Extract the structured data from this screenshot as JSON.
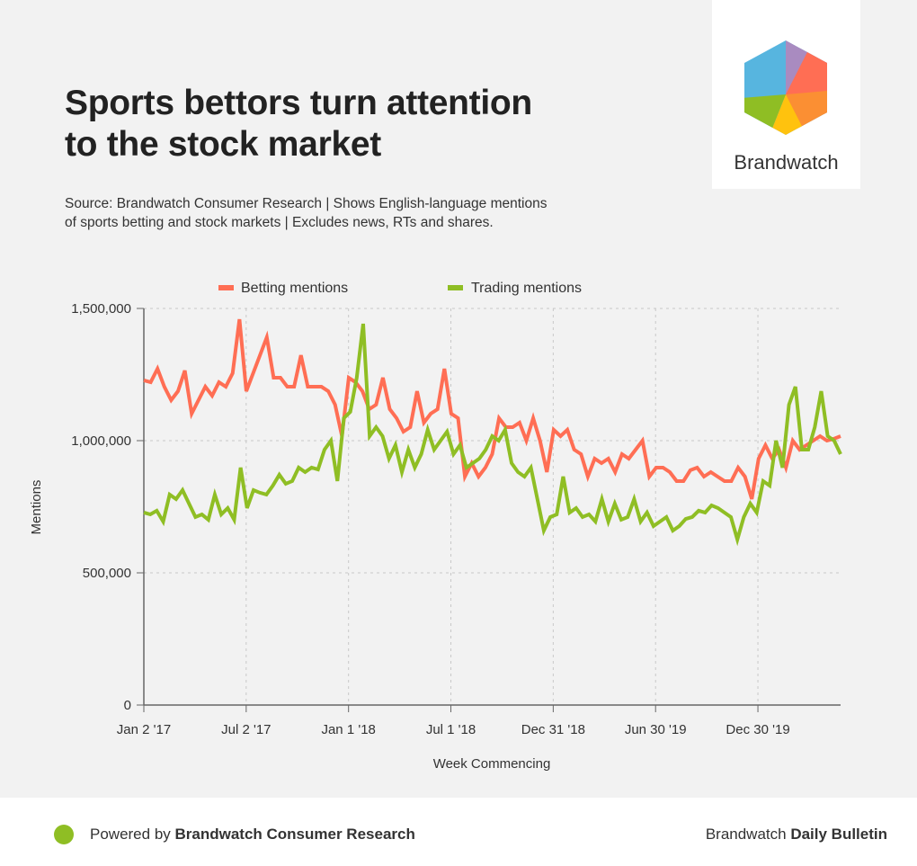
{
  "header": {
    "title_line1": "Sports bettors turn attention",
    "title_line2": "to the stock market",
    "source_line1": "Source: Brandwatch Consumer Research | Shows English-language mentions",
    "source_line2": "of sports betting and stock markets | Excludes news, RTs and shares."
  },
  "logo": {
    "text": "Brandwatch"
  },
  "footer": {
    "powered_prefix": "Powered by ",
    "powered_bold": "Brandwatch Consumer Research",
    "bulletin_prefix": "Brandwatch ",
    "bulletin_bold": "Daily Bulletin"
  },
  "chart_data": {
    "type": "line",
    "xlabel": "Week Commencing",
    "ylabel": "Mentions",
    "ylim": [
      0,
      1500000
    ],
    "x_range_weeks": [
      0,
      177
    ],
    "yticks": [
      {
        "v": 0,
        "label": "0"
      },
      {
        "v": 500000,
        "label": "500,000"
      },
      {
        "v": 1000000,
        "label": "1,000,000"
      },
      {
        "v": 1500000,
        "label": "1,500,000"
      }
    ],
    "xticks": [
      {
        "w": 0,
        "label": "Jan 2 '17"
      },
      {
        "w": 26,
        "label": "Jul 2 '17"
      },
      {
        "w": 52,
        "label": "Jan 1 '18"
      },
      {
        "w": 78,
        "label": "Jul 1 '18"
      },
      {
        "w": 104,
        "label": "Dec 31 '18"
      },
      {
        "w": 130,
        "label": "Jun 30 '19"
      },
      {
        "w": 156,
        "label": "Dec 30 '19"
      }
    ],
    "grid": true,
    "legend": "top-center",
    "series": [
      {
        "name": "Betting mentions",
        "color": "#ff6e54",
        "values": [
          1228,
          1221,
          1272,
          1204,
          1153,
          1187,
          1265,
          1102,
          1153,
          1204,
          1170,
          1221,
          1204,
          1255,
          1459,
          1187,
          1255,
          1323,
          1391,
          1238,
          1238,
          1204,
          1204,
          1323,
          1204,
          1204,
          1204,
          1187,
          1136,
          1017,
          1238,
          1221,
          1187,
          1119,
          1136,
          1238,
          1119,
          1085,
          1034,
          1051,
          1187,
          1068,
          1102,
          1119,
          1272,
          1102,
          1085,
          864,
          915,
          864,
          898,
          949,
          1085,
          1051,
          1051,
          1068,
          1000,
          1085,
          1000,
          881,
          1041,
          1017,
          1041,
          966,
          949,
          864,
          932,
          915,
          932,
          881,
          949,
          932,
          966,
          1000,
          864,
          898,
          898,
          881,
          847,
          847,
          888,
          898,
          864,
          881,
          864,
          847,
          847,
          898,
          864,
          779,
          932,
          983,
          932,
          966,
          898,
          1000,
          966,
          983,
          1000,
          1017,
          1000,
          1007,
          1017
        ]
      },
      {
        "name": "Trading mentions",
        "color": "#8fbe24",
        "values": [
          728,
          721,
          735,
          694,
          796,
          779,
          813,
          762,
          711,
          721,
          701,
          796,
          721,
          745,
          701,
          898,
          745,
          813,
          803,
          796,
          830,
          871,
          837,
          847,
          898,
          881,
          898,
          891,
          966,
          1000,
          847,
          1085,
          1109,
          1238,
          1442,
          1017,
          1051,
          1017,
          932,
          983,
          881,
          966,
          898,
          949,
          1041,
          966,
          1000,
          1034,
          949,
          983,
          898,
          915,
          932,
          966,
          1017,
          1000,
          1041,
          915,
          881,
          864,
          898,
          779,
          660,
          711,
          721,
          864,
          728,
          745,
          711,
          721,
          694,
          779,
          694,
          762,
          701,
          711,
          779,
          694,
          728,
          677,
          694,
          711,
          660,
          677,
          704,
          711,
          735,
          728,
          755,
          745,
          728,
          711,
          626,
          711,
          762,
          728,
          847,
          830,
          1000,
          898,
          1136,
          1204,
          966,
          966,
          1051,
          1187,
          1017,
          1000,
          949
        ]
      }
    ]
  }
}
